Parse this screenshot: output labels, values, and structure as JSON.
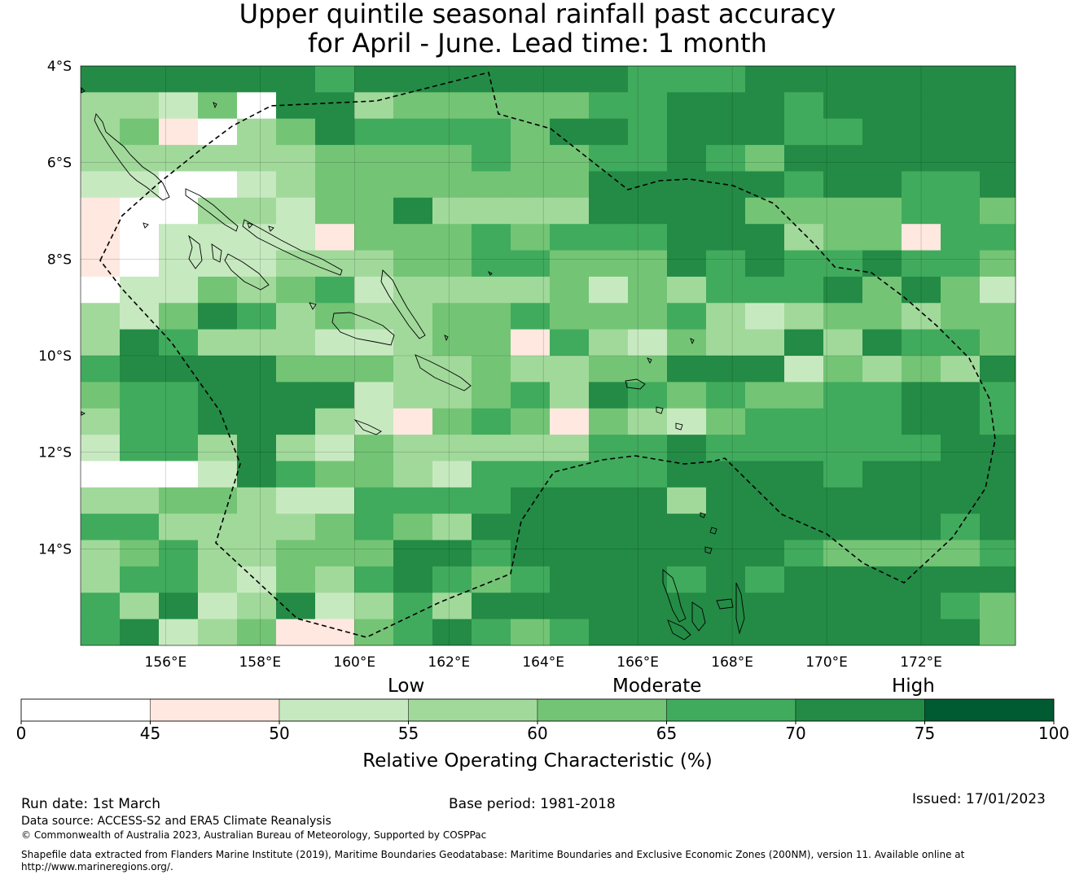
{
  "title_line1": "Upper quintile seasonal rainfall past accuracy",
  "title_line2": "for April - June. Lead time: 1 month",
  "map": {
    "lon_range": [
      154.2,
      174.0
    ],
    "lat_range": [
      -16.0,
      -4.0
    ],
    "lat_ticks": [
      -4,
      -6,
      -8,
      -10,
      -12,
      -14
    ],
    "lat_tick_labels": [
      "4°S",
      "6°S",
      "8°S",
      "10°S",
      "12°S",
      "14°S"
    ],
    "lon_ticks": [
      156,
      158,
      160,
      162,
      164,
      166,
      168,
      170,
      172
    ],
    "lon_tick_labels": [
      "156°E",
      "158°E",
      "160°E",
      "162°E",
      "164°E",
      "166°E",
      "168°E",
      "170°E",
      "172°E"
    ],
    "grid_rows": [
      "6666665666666655566666666",
      "33240663444445566656666655",
      "3410346555546656665566665",
      "3333334444544556546666666",
      "2200234444444666665665566",
      "1003324463333666644445544",
      "1022221444545556663441556",
      "1022233344554446565565543443",
      "0224345233334243555646425226",
      "3246534334454445323443445444",
      "3653332234415324336365546564",
      "5666644433433446662434364446",
      "4556666233453654544556654466",
      "3556663214541432455556656645",
      "2553632433333556555555664464",
      "0002654432555556666566666665",
      "3344322555566663666666665655",
      "5533334543666666666666565645",
      "3453344466566666665444456646",
      "3553243565456665656666665336",
      "5362362353666666666666543656",
      "5623411456545666666666643465"
    ],
    "legend": [
      {
        "min": 0,
        "max": 45,
        "color": "#ffffff"
      },
      {
        "min": 45,
        "max": 50,
        "color": "#fee8df"
      },
      {
        "min": 50,
        "max": 55,
        "color": "#c7e9c0"
      },
      {
        "min": 55,
        "max": 60,
        "color": "#a1d99b"
      },
      {
        "min": 60,
        "max": 65,
        "color": "#74c476"
      },
      {
        "min": 65,
        "max": 70,
        "color": "#41ab5d"
      },
      {
        "min": 70,
        "max": 75,
        "color": "#238b45"
      },
      {
        "min": 75,
        "max": 100,
        "color": "#005a32"
      }
    ]
  },
  "colorbar": {
    "category_low": "Low",
    "category_moderate": "Moderate",
    "category_high": "High",
    "tick_labels": [
      "0",
      "45",
      "50",
      "55",
      "60",
      "65",
      "70",
      "75",
      "100"
    ],
    "axis_label": "Relative Operating Characteristic (%)"
  },
  "footer": {
    "run_date": "Run date: 1st March",
    "base_period": "Base period: 1981-2018",
    "issued": "Issued: 17/01/2023",
    "data_source": "Data source: ACCESS-S2 and ERA5 Climate Reanalysis",
    "copyright": "© Commonwealth of Australia 2023, Australian Bureau of Meteorology, Supported by COSPPac",
    "shapefile_line1": "Shapefile data extracted from Flanders Marine Institute (2019), Maritime Boundaries Geodatabase: Maritime Boundaries and Exclusive Economic Zones (200NM), version 11. Available online at",
    "shapefile_line2": "http://www.marineregions.org/."
  }
}
